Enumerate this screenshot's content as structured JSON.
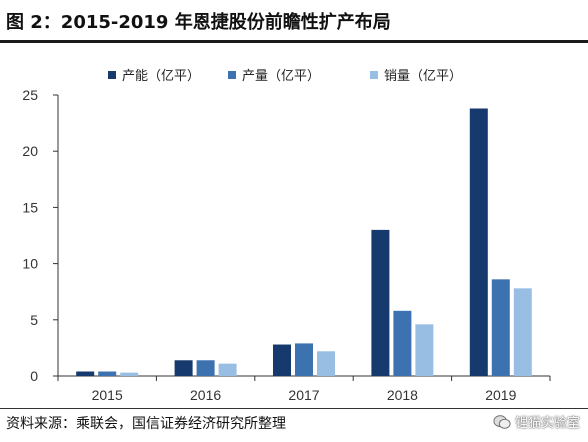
{
  "header": {
    "title": "图 2：2015-2019 年恩捷股份前瞻性扩产布局"
  },
  "footer": {
    "source": "资料来源：乘联会，国信证券经济研究所整理",
    "watermark": "锂猫实验室"
  },
  "chart_data": {
    "type": "bar",
    "categories": [
      "2015",
      "2016",
      "2017",
      "2018",
      "2019"
    ],
    "series": [
      {
        "name": "产能（亿平）",
        "color": "#173a6e",
        "values": [
          0.4,
          1.4,
          2.8,
          13.0,
          23.8
        ]
      },
      {
        "name": "产量（亿平）",
        "color": "#3d72b0",
        "values": [
          0.4,
          1.4,
          2.9,
          5.8,
          8.6
        ]
      },
      {
        "name": "销量（亿平）",
        "color": "#98bfe3",
        "values": [
          0.3,
          1.1,
          2.2,
          4.6,
          7.8
        ]
      }
    ],
    "yticks": [
      "0",
      "5",
      "10",
      "15",
      "20",
      "25"
    ],
    "ylim": [
      0,
      25
    ],
    "grid": false,
    "legend_position": "top"
  }
}
